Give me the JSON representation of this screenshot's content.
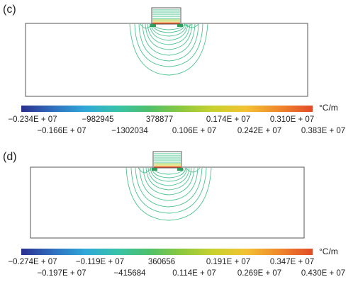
{
  "panels": [
    {
      "label": "(c)",
      "unit": "°C/m",
      "ticks_row1": [
        "−0.234E + 07",
        "−982945",
        "378877",
        "0.174E + 07",
        "0.310E + 07"
      ],
      "ticks_row2": [
        "−0.166E + 07",
        "−1302034",
        "0.106E + 07",
        "0.242E + 07",
        "0.383E + 07"
      ]
    },
    {
      "label": "(d)",
      "unit": "°C/m",
      "ticks_row1": [
        "−0.274E + 07",
        "−0.119E + 07",
        "360656",
        "0.191E + 07",
        "0.347E + 07"
      ],
      "ticks_row2": [
        "−0.197E + 07",
        "−415684",
        "0.114E + 07",
        "0.269E + 07",
        "0.430E + 07"
      ]
    }
  ],
  "colors": {
    "colormap": [
      "#2b2f8f",
      "#2f6fc0",
      "#2fa8d8",
      "#38c2a8",
      "#4fc06a",
      "#8cc83e",
      "#c9d12e",
      "#f2c233",
      "#f08a2c",
      "#e24b27"
    ],
    "contour": "#4cc48f",
    "frame": "#555555"
  }
}
